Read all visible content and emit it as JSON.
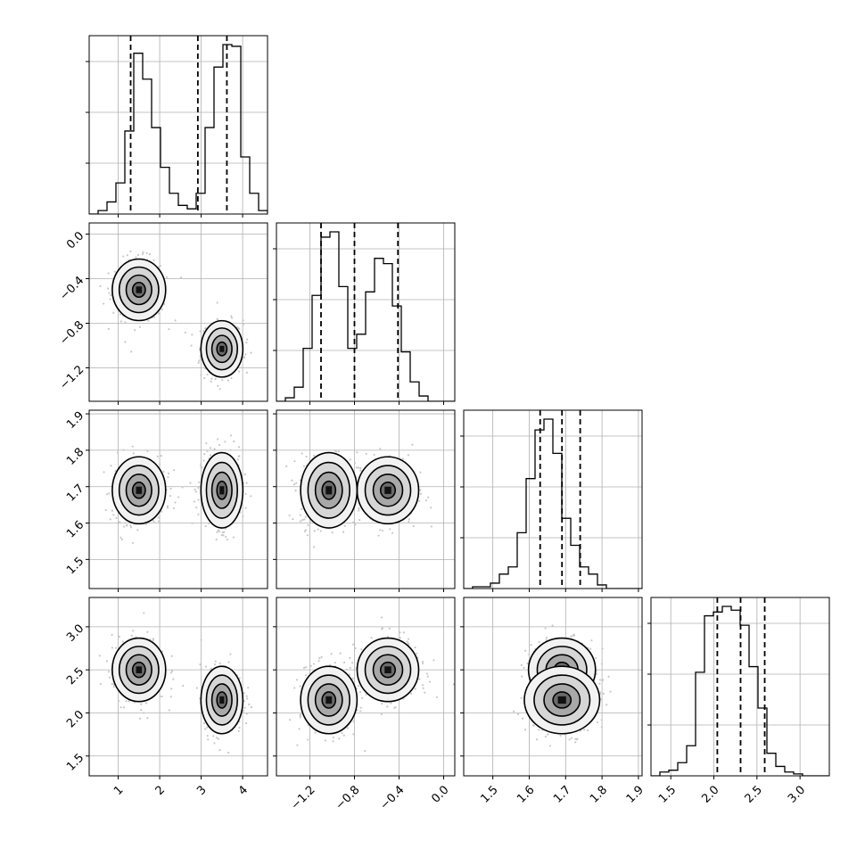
{
  "chart_data": {
    "type": "corner",
    "description_free": true,
    "grid": true,
    "parameters": [
      {
        "index": 0,
        "range": [
          0.3,
          4.6
        ],
        "ticks": [
          "1",
          "2",
          "3",
          "4"
        ],
        "tick_values": [
          1,
          2,
          3,
          4
        ],
        "quantiles": [
          1.3,
          2.92,
          3.62
        ]
      },
      {
        "index": 1,
        "range": [
          -1.5,
          0.1
        ],
        "ticks": [
          "−1.2",
          "−0.8",
          "−0.4",
          "0.0"
        ],
        "tick_values": [
          -1.2,
          -0.8,
          -0.4,
          0.0
        ],
        "yticks": [
          "−1.2",
          "−0.8",
          "−0.4",
          "0.0"
        ],
        "quantiles": [
          -1.1,
          -0.8,
          -0.41
        ]
      },
      {
        "index": 2,
        "range": [
          1.42,
          1.91
        ],
        "ticks": [
          "1.5",
          "1.6",
          "1.7",
          "1.8",
          "1.9"
        ],
        "tick_values": [
          1.5,
          1.6,
          1.7,
          1.8,
          1.9
        ],
        "quantiles": [
          1.63,
          1.69,
          1.74
        ]
      },
      {
        "index": 3,
        "range": [
          1.27,
          3.34
        ],
        "ticks": [
          "1.5",
          "2.0",
          "2.5",
          "3.0"
        ],
        "tick_values": [
          1.5,
          2.0,
          2.5,
          3.0
        ],
        "quantiles": [
          2.04,
          2.31,
          2.59
        ]
      }
    ],
    "histograms": [
      {
        "param": 0,
        "edges_start": 0.3,
        "bin_width": 0.215,
        "counts": [
          0,
          2,
          7,
          18,
          48,
          93,
          78,
          50,
          27,
          12,
          5,
          3,
          12,
          50,
          85,
          98,
          97,
          33,
          12,
          2
        ]
      },
      {
        "param": 1,
        "edges_start": -1.5,
        "bin_width": 0.08,
        "counts": [
          0,
          2,
          8,
          30,
          60,
          93,
          96,
          65,
          30,
          38,
          62,
          81,
          78,
          54,
          28,
          11,
          3,
          0,
          0,
          0
        ]
      },
      {
        "param": 2,
        "edges_start": 1.42,
        "bin_width": 0.0245,
        "counts": [
          0,
          1,
          1,
          3,
          8,
          12,
          31,
          61,
          88,
          94,
          75,
          39,
          24,
          12,
          8,
          2,
          0,
          0,
          0,
          0
        ]
      },
      {
        "param": 3,
        "edges_start": 1.27,
        "bin_width": 0.1035,
        "counts": [
          0,
          2,
          3,
          7,
          16,
          55,
          85,
          87,
          90,
          88,
          80,
          58,
          36,
          12,
          5,
          2,
          1,
          0,
          0,
          0
        ]
      }
    ],
    "joint_clusters": [
      {
        "center": [
          1.5,
          -0.5,
          1.69,
          2.5
        ],
        "sd": [
          0.28,
          0.12,
          0.04,
          0.16
        ]
      },
      {
        "center": [
          3.5,
          -1.03,
          1.69,
          2.15
        ],
        "sd": [
          0.22,
          0.11,
          0.045,
          0.17
        ]
      }
    ],
    "panels": [
      {
        "row": 0,
        "col": 0,
        "kind": "hist"
      },
      {
        "row": 1,
        "col": 0,
        "kind": "scatter"
      },
      {
        "row": 1,
        "col": 1,
        "kind": "hist"
      },
      {
        "row": 2,
        "col": 0,
        "kind": "scatter"
      },
      {
        "row": 2,
        "col": 1,
        "kind": "scatter"
      },
      {
        "row": 2,
        "col": 2,
        "kind": "hist"
      },
      {
        "row": 3,
        "col": 0,
        "kind": "scatter"
      },
      {
        "row": 3,
        "col": 1,
        "kind": "scatter"
      },
      {
        "row": 3,
        "col": 2,
        "kind": "scatter"
      },
      {
        "row": 3,
        "col": 3,
        "kind": "hist"
      }
    ]
  }
}
